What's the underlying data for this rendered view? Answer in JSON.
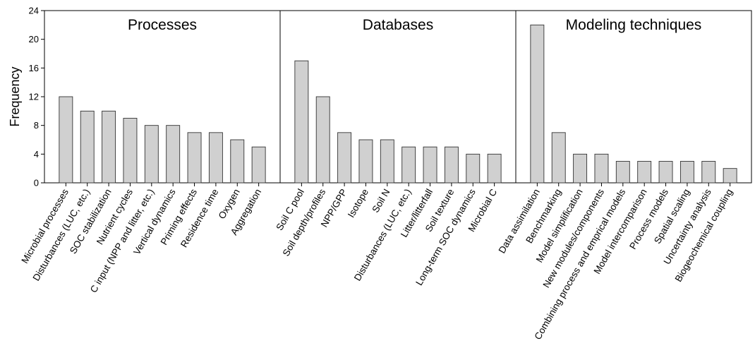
{
  "chart_data": {
    "type": "bar",
    "ylabel": "Frequency",
    "ylim": [
      0,
      24
    ],
    "yticks": [
      0,
      4,
      8,
      12,
      16,
      20,
      24
    ],
    "grid": false,
    "bar_color": "#d0d0d0",
    "panels": [
      {
        "title": "Processes",
        "categories": [
          "Microbial processes",
          "Disturbances (LUC, etc.)",
          "SOC stabilization",
          "Nutrient cycles",
          "C input (NPP and litter, etc.)",
          "Vertical dynamics",
          "Priming effects",
          "Residence time",
          "Oxygen",
          "Aggregation"
        ],
        "values": [
          12,
          10,
          10,
          9,
          8,
          8,
          7,
          7,
          6,
          5
        ]
      },
      {
        "title": "Databases",
        "categories": [
          "Soil C pool",
          "Soil depth/profiles",
          "NPP/GPP",
          "Isotope",
          "Soil N",
          "Disturbances (LUC, etc.)",
          "Litter/litterfall",
          "Soil texture",
          "Long-term SOC dynamics",
          "Microbial C"
        ],
        "values": [
          17,
          12,
          7,
          6,
          6,
          5,
          5,
          5,
          4,
          4
        ]
      },
      {
        "title": "Modeling techniques",
        "categories": [
          "Data assimilation",
          "Benchmarking",
          "Model simplification",
          "New modules/components",
          "Combining process and emprical models",
          "Model intercomparison",
          "Process models",
          "Spatial scaling",
          "Uncertainty analysis",
          "Biogeochemical coupling"
        ],
        "values": [
          22,
          7,
          4,
          4,
          3,
          3,
          3,
          3,
          3,
          2
        ]
      }
    ]
  }
}
